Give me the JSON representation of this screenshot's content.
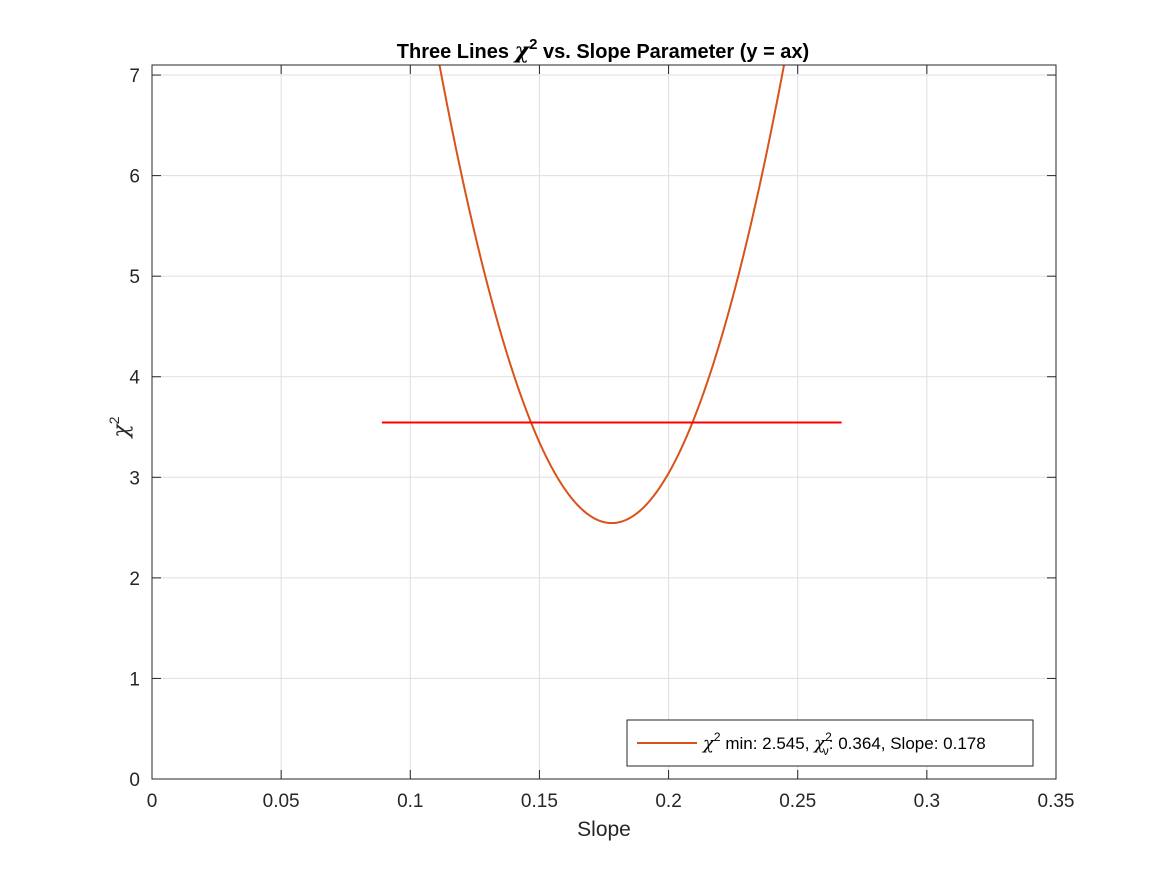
{
  "chart_data": {
    "type": "line",
    "title": {
      "prefix": "Three Lines ",
      "chi": "χ",
      "sup": "2",
      "suffix": " vs. Slope Parameter (y = ax)"
    },
    "xlabel": "Slope",
    "ylabel": {
      "chi": "χ",
      "sup": "2"
    },
    "xlim": [
      0,
      0.35
    ],
    "ylim": [
      0,
      7.1
    ],
    "xticks": [
      0,
      0.05,
      0.1,
      0.15,
      0.2,
      0.25,
      0.3,
      0.35
    ],
    "xtick_labels": [
      "0",
      "0.05",
      "0.1",
      "0.15",
      "0.2",
      "0.25",
      "0.3",
      "0.35"
    ],
    "yticks": [
      0,
      1,
      2,
      3,
      4,
      5,
      6,
      7
    ],
    "ytick_labels": [
      "0",
      "1",
      "2",
      "3",
      "4",
      "5",
      "6",
      "7"
    ],
    "grid": true,
    "legend_location": "bottom-right",
    "series": [
      {
        "name": "χ² min: 2.545, χν²: 0.364, Slope: 0.178",
        "kind": "parabola",
        "color": "#D95319",
        "x_min": 0.178,
        "y_min": 2.545,
        "curvature": 1024,
        "x_range": [
          0.09,
          0.268
        ]
      },
      {
        "kind": "hline",
        "color": "#FF0000",
        "y": 3.545,
        "x_range": [
          0.089,
          0.267
        ]
      }
    ],
    "legend": {
      "chi": "χ",
      "sup": "2",
      "min_text": " min: 2.545, ",
      "nu": "ν",
      "rest": ": 0.364, Slope: 0.178"
    }
  }
}
